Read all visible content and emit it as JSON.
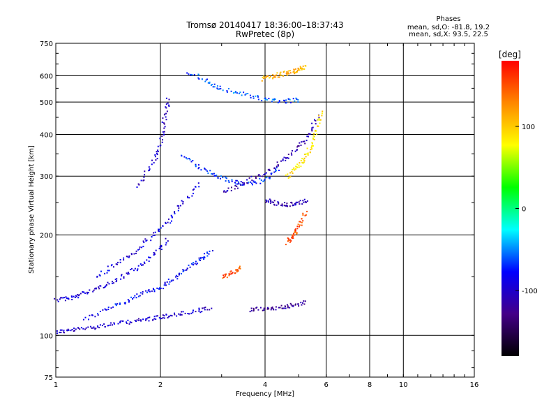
{
  "chart_data": {
    "type": "scatter",
    "title": "Tromsø 20140417 18:36:00–18:37:43",
    "subtitle": "RwPretec (8p)",
    "xlabel": "Frequency [MHz]",
    "ylabel": "Stationary phase Virtual Height [km]",
    "x_scale": "log",
    "y_scale": "log",
    "xlim": [
      1,
      16
    ],
    "ylim": [
      75,
      750
    ],
    "x_ticks": [
      1,
      2,
      4,
      6,
      8,
      10,
      16
    ],
    "y_ticks": [
      75,
      100,
      200,
      300,
      400,
      500,
      600,
      750
    ],
    "grid": true,
    "legend": {
      "title": "Phases",
      "lines": [
        "mean, sd,O: -81.8, 19.2",
        "mean, sd,X:  93.5, 22.5"
      ],
      "placement": "top-right"
    },
    "colorbar": {
      "label": "[deg]",
      "range": [
        -180,
        180
      ],
      "ticks": [
        100,
        0,
        -100
      ],
      "colors": [
        "#ff0000",
        "#ff8800",
        "#ffff00",
        "#00ff00",
        "#00ffff",
        "#0000ff",
        "#440088",
        "#000000"
      ]
    },
    "traces": [
      {
        "x": [
          1.0,
          1.1,
          1.25,
          1.4,
          1.6,
          1.8,
          2.0,
          2.2,
          2.5,
          2.8
        ],
        "y": [
          103,
          104,
          106,
          108,
          110,
          112,
          114,
          116,
          118,
          122
        ],
        "phase": -100
      },
      {
        "x": [
          1.0,
          1.1,
          1.2,
          1.35,
          1.5,
          1.7,
          1.9,
          2.1
        ],
        "y": [
          128,
          130,
          135,
          140,
          148,
          160,
          175,
          195
        ],
        "phase": -95
      },
      {
        "x": [
          1.3,
          1.5,
          1.7,
          1.9,
          2.1,
          2.3,
          2.6
        ],
        "y": [
          150,
          165,
          180,
          200,
          220,
          250,
          290
        ],
        "phase": -90
      },
      {
        "x": [
          1.7,
          1.9,
          2.0,
          2.05,
          2.1
        ],
        "y": [
          280,
          330,
          380,
          450,
          520
        ],
        "phase": -100
      },
      {
        "x": [
          2.3,
          2.6,
          2.9,
          3.2,
          3.6,
          4.0,
          4.4
        ],
        "y": [
          350,
          320,
          300,
          290,
          285,
          295,
          320
        ],
        "phase": -70
      },
      {
        "x": [
          2.4,
          2.7,
          3.0,
          3.5,
          4.0,
          4.5,
          5.0
        ],
        "y": [
          620,
          580,
          550,
          530,
          510,
          505,
          510
        ],
        "phase": -60
      },
      {
        "x": [
          3.0,
          3.4,
          3.9,
          4.4,
          4.9,
          5.3,
          5.7
        ],
        "y": [
          270,
          285,
          305,
          330,
          360,
          400,
          460
        ],
        "phase": -110
      },
      {
        "x": [
          4.6,
          4.9,
          5.2,
          5.4,
          5.6,
          5.8
        ],
        "y": [
          300,
          320,
          340,
          370,
          410,
          480
        ],
        "phase": 90
      },
      {
        "x": [
          3.9,
          4.2,
          4.5,
          4.8,
          5.0,
          5.2
        ],
        "y": [
          590,
          600,
          610,
          620,
          630,
          640
        ],
        "phase": 110
      },
      {
        "x": [
          4.6,
          4.8,
          5.0,
          5.2
        ],
        "y": [
          190,
          200,
          215,
          235
        ],
        "phase": 150
      },
      {
        "x": [
          3.0,
          3.2,
          3.4
        ],
        "y": [
          150,
          155,
          162
        ],
        "phase": 150
      },
      {
        "x": [
          3.6,
          4.0,
          4.4,
          4.8,
          5.2
        ],
        "y": [
          120,
          121,
          122,
          124,
          126
        ],
        "phase": -120
      },
      {
        "x": [
          4.0,
          4.3,
          4.6,
          4.9,
          5.3
        ],
        "y": [
          255,
          250,
          248,
          250,
          255
        ],
        "phase": -110
      },
      {
        "x": [
          1.2,
          1.4,
          1.6,
          1.8,
          2.0,
          2.2,
          2.4,
          2.6,
          2.8
        ],
        "y": [
          112,
          120,
          128,
          135,
          140,
          150,
          160,
          170,
          180
        ],
        "phase": -80
      }
    ]
  }
}
